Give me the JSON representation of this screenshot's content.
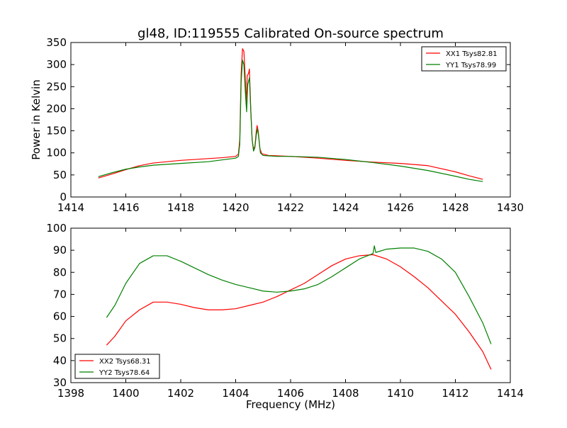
{
  "figure": {
    "title": "gl48, ID:119555 Calibrated On-source spectrum"
  },
  "colors": {
    "red": "#ff0000",
    "green": "#008000"
  },
  "chart_data": [
    {
      "type": "line",
      "ylabel": "Power in Kelvin",
      "xlabel": "",
      "xlim": [
        1414,
        1430
      ],
      "ylim": [
        0,
        350
      ],
      "xticks": [
        1414,
        1416,
        1418,
        1420,
        1422,
        1424,
        1426,
        1428,
        1430
      ],
      "yticks": [
        0,
        50,
        100,
        150,
        200,
        250,
        300,
        350
      ],
      "legend": "top-right",
      "series": [
        {
          "name": "XX1 Tsys82.81",
          "color": "#ff0000",
          "points": [
            [
              1415,
              43
            ],
            [
              1415.5,
              52
            ],
            [
              1416,
              62
            ],
            [
              1416.5,
              71
            ],
            [
              1417,
              77
            ],
            [
              1418,
              83
            ],
            [
              1419,
              87
            ],
            [
              1419.5,
              89
            ],
            [
              1420,
              92
            ],
            [
              1420.1,
              97
            ],
            [
              1420.15,
              130
            ],
            [
              1420.2,
              280
            ],
            [
              1420.25,
              336
            ],
            [
              1420.3,
              330
            ],
            [
              1420.35,
              270
            ],
            [
              1420.38,
              210
            ],
            [
              1420.42,
              275
            ],
            [
              1420.47,
              280
            ],
            [
              1420.5,
              290
            ],
            [
              1420.55,
              200
            ],
            [
              1420.6,
              130
            ],
            [
              1420.65,
              108
            ],
            [
              1420.7,
              115
            ],
            [
              1420.75,
              148
            ],
            [
              1420.78,
              162
            ],
            [
              1420.82,
              150
            ],
            [
              1420.88,
              110
            ],
            [
              1420.95,
              98
            ],
            [
              1421.2,
              94
            ],
            [
              1422,
              92
            ],
            [
              1423,
              88
            ],
            [
              1424,
              83
            ],
            [
              1425,
              79
            ],
            [
              1426,
              76
            ],
            [
              1427,
              71
            ],
            [
              1428,
              57
            ],
            [
              1428.5,
              48
            ],
            [
              1429,
              40
            ]
          ]
        },
        {
          "name": "YY1 Tsys78.99",
          "color": "#008000",
          "points": [
            [
              1415,
              46
            ],
            [
              1415.5,
              55
            ],
            [
              1416,
              63
            ],
            [
              1416.5,
              68
            ],
            [
              1417,
              72
            ],
            [
              1418,
              76
            ],
            [
              1419,
              80
            ],
            [
              1419.5,
              84
            ],
            [
              1420,
              88
            ],
            [
              1420.1,
              92
            ],
            [
              1420.15,
              120
            ],
            [
              1420.2,
              260
            ],
            [
              1420.25,
              310
            ],
            [
              1420.3,
              300
            ],
            [
              1420.35,
              240
            ],
            [
              1420.4,
              193
            ],
            [
              1420.44,
              255
            ],
            [
              1420.5,
              270
            ],
            [
              1420.55,
              195
            ],
            [
              1420.6,
              130
            ],
            [
              1420.65,
              104
            ],
            [
              1420.7,
              112
            ],
            [
              1420.75,
              140
            ],
            [
              1420.8,
              155
            ],
            [
              1420.85,
              130
            ],
            [
              1420.9,
              100
            ],
            [
              1421,
              94
            ],
            [
              1421.5,
              92
            ],
            [
              1422,
              92
            ],
            [
              1423,
              90
            ],
            [
              1424,
              85
            ],
            [
              1425,
              78
            ],
            [
              1426,
              70
            ],
            [
              1427,
              60
            ],
            [
              1428,
              47
            ],
            [
              1428.5,
              40
            ],
            [
              1429,
              35
            ]
          ]
        }
      ]
    },
    {
      "type": "line",
      "ylabel": "",
      "xlabel": "Frequency (MHz)",
      "xlim": [
        1398,
        1414
      ],
      "ylim": [
        30,
        100
      ],
      "xticks": [
        1398,
        1400,
        1402,
        1404,
        1406,
        1408,
        1410,
        1412,
        1414
      ],
      "yticks": [
        30,
        40,
        50,
        60,
        70,
        80,
        90,
        100
      ],
      "legend": "bottom-left",
      "series": [
        {
          "name": "XX2 Tsys68.31",
          "color": "#ff0000",
          "points": [
            [
              1399.3,
              47
            ],
            [
              1399.6,
              51
            ],
            [
              1400,
              58
            ],
            [
              1400.5,
              63
            ],
            [
              1401,
              66.5
            ],
            [
              1401.5,
              66.5
            ],
            [
              1402,
              65.5
            ],
            [
              1402.5,
              64
            ],
            [
              1403,
              63
            ],
            [
              1403.5,
              63
            ],
            [
              1404,
              63.5
            ],
            [
              1404.5,
              65
            ],
            [
              1405,
              66.5
            ],
            [
              1405.5,
              69
            ],
            [
              1406,
              72
            ],
            [
              1406.5,
              75
            ],
            [
              1407,
              79
            ],
            [
              1407.5,
              83
            ],
            [
              1408,
              86
            ],
            [
              1408.5,
              87.5
            ],
            [
              1409,
              88
            ],
            [
              1409.5,
              86
            ],
            [
              1410,
              82.5
            ],
            [
              1410.5,
              78
            ],
            [
              1411,
              73
            ],
            [
              1411.5,
              67
            ],
            [
              1412,
              61
            ],
            [
              1412.5,
              53
            ],
            [
              1413,
              44
            ],
            [
              1413.3,
              36
            ]
          ]
        },
        {
          "name": "YY2 Tsys78.64",
          "color": "#008000",
          "points": [
            [
              1399.3,
              59.5
            ],
            [
              1399.6,
              65
            ],
            [
              1400,
              75
            ],
            [
              1400.5,
              84
            ],
            [
              1401,
              87.5
            ],
            [
              1401.5,
              87.5
            ],
            [
              1402,
              85
            ],
            [
              1402.5,
              82
            ],
            [
              1403,
              79
            ],
            [
              1403.5,
              76.5
            ],
            [
              1404,
              74.5
            ],
            [
              1404.5,
              73
            ],
            [
              1405,
              71.5
            ],
            [
              1405.5,
              71
            ],
            [
              1406,
              71.5
            ],
            [
              1406.5,
              72.5
            ],
            [
              1407,
              74.5
            ],
            [
              1407.5,
              78
            ],
            [
              1408,
              82
            ],
            [
              1408.5,
              86
            ],
            [
              1409,
              88.5
            ],
            [
              1409.05,
              92
            ],
            [
              1409.1,
              89
            ],
            [
              1409.5,
              90.5
            ],
            [
              1410,
              91
            ],
            [
              1410.5,
              91
            ],
            [
              1411,
              89.5
            ],
            [
              1411.5,
              86
            ],
            [
              1412,
              80
            ],
            [
              1412.5,
              69
            ],
            [
              1413,
              57
            ],
            [
              1413.3,
              47.5
            ]
          ]
        }
      ]
    }
  ]
}
